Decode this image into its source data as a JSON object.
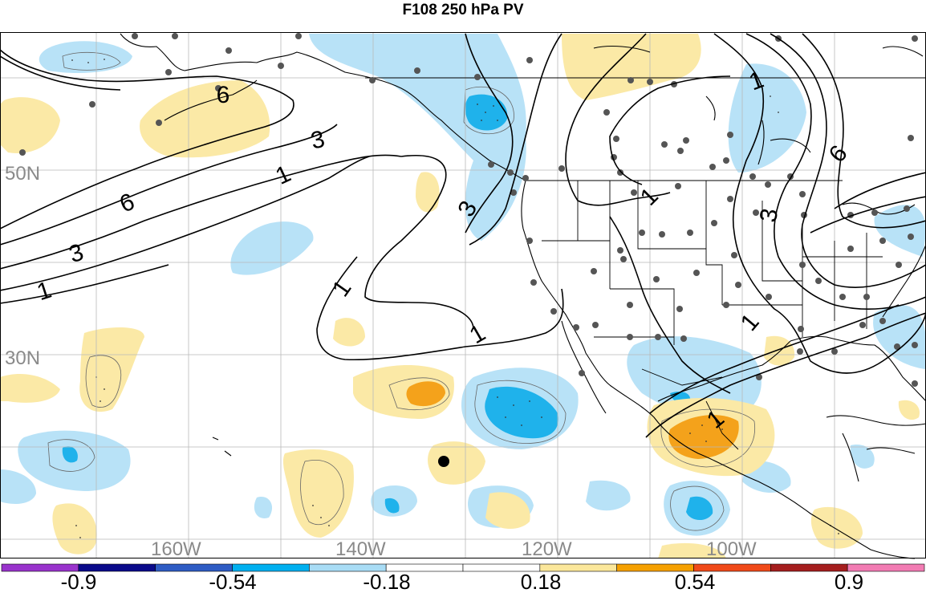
{
  "title": "F108 250 hPa PV",
  "latitude_labels": [
    "50N",
    "30N"
  ],
  "longitude_labels": [
    "160W",
    "140W",
    "120W",
    "100W"
  ],
  "contour_labels": [
    "6",
    "3",
    "1",
    "6",
    "3",
    "1",
    "3",
    "1",
    "1",
    "1",
    "1",
    "6",
    "3",
    "1",
    "1"
  ],
  "colorbar": {
    "ticks": [
      "-0.9",
      "-0.54",
      "-0.18",
      "0.18",
      "0.54",
      "0.9"
    ],
    "colors": [
      "#9933cc",
      "#0a0a8a",
      "#2f5cc4",
      "#00b0f0",
      "#a8dcf5",
      "#ffffff",
      "#ffffff",
      "#fbe79b",
      "#f5a000",
      "#f04a1a",
      "#a51e1e",
      "#f27cb3"
    ]
  },
  "anomaly_colors": {
    "neg_light": "#b8e2f7",
    "neg_strong": "#1fb2eb",
    "pos_light": "#fbe9a6",
    "pos_strong": "#f4a21b"
  }
}
